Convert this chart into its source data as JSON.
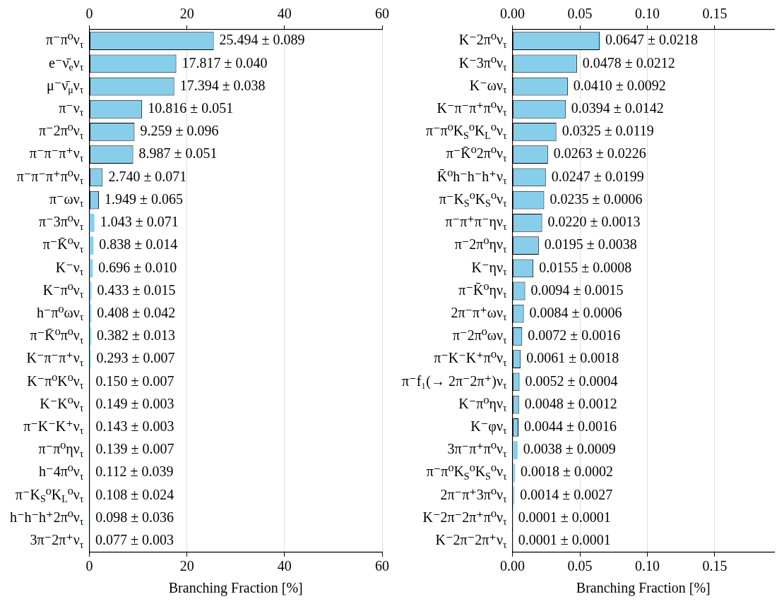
{
  "chart_data": [
    {
      "type": "bar",
      "orientation": "horizontal",
      "xlabel": "Branching Fraction [%]",
      "color": "#87ceeb",
      "grid": "x",
      "xlim": [
        0,
        60
      ],
      "xticks": [
        0,
        20,
        40,
        60
      ],
      "x2lim": [
        0,
        60
      ],
      "x2ticks": [
        0,
        20,
        40,
        60
      ],
      "categories": [
        "π⁻π⁰ν$_{τ}$",
        "e⁻ν̄$_{e}$ν$_{τ}$",
        "μ⁻ν̄$_{μ}$ν$_{τ}$",
        "π⁻ν$_{τ}$",
        "π⁻2π⁰ν$_{τ}$",
        "π⁻π⁻π⁺ν$_{τ}$",
        "π⁻π⁻π⁺π⁰ν$_{τ}$",
        "π⁻ων$_{τ}$",
        "π⁻3π⁰ν$_{τ}$",
        "π⁻K̄⁰ν$_{τ}$",
        "K⁻ν$_{τ}$",
        "K⁻π⁰ν$_{τ}$",
        "h⁻π⁰ων$_{τ}$",
        "π⁻K̄⁰π⁰ν$_{τ}$",
        "K⁻π⁻π⁺ν$_{τ}$",
        "K⁻π⁰K⁰ν$_{τ}$",
        "K⁻K⁰ν$_{τ}$",
        "π⁻K⁻K⁺ν$_{τ}$",
        "π⁻π⁰ην$_{τ}$",
        "h⁻4π⁰ν$_{τ}$",
        "π⁻K$_{S}$⁰K$_{L}$⁰ν$_{τ}$",
        "h⁻h⁻h⁺2π⁰ν$_{τ}$",
        "3π⁻2π⁺ν$_{τ}$"
      ],
      "values": [
        25.494,
        17.817,
        17.394,
        10.816,
        9.259,
        8.987,
        2.74,
        1.949,
        1.043,
        0.838,
        0.696,
        0.433,
        0.408,
        0.382,
        0.293,
        0.15,
        0.149,
        0.143,
        0.139,
        0.112,
        0.108,
        0.098,
        0.077
      ],
      "value_labels": [
        "25.494 ± 0.089",
        "17.817 ± 0.040",
        "17.394 ± 0.038",
        "10.816 ± 0.051",
        "9.259 ± 0.096",
        "8.987 ± 0.051",
        "2.740 ± 0.071",
        "1.949 ± 0.065",
        "1.043 ± 0.071",
        "0.838 ± 0.014",
        "0.696 ± 0.010",
        "0.433 ± 0.015",
        "0.408 ± 0.042",
        "0.382 ± 0.013",
        "0.293 ± 0.007",
        "0.150 ± 0.007",
        "0.149 ± 0.003",
        "0.143 ± 0.003",
        "0.139 ± 0.007",
        "0.112 ± 0.039",
        "0.108 ± 0.024",
        "0.098 ± 0.036",
        "0.077 ± 0.003"
      ]
    },
    {
      "type": "bar",
      "orientation": "horizontal",
      "xlabel": "Branching Fraction [%]",
      "color": "#87ceeb",
      "grid": "x",
      "xlim": [
        0,
        0.194
      ],
      "xticks": [
        {
          "value": 0,
          "label": "0.00"
        },
        {
          "value": 0.05,
          "label": "0.05"
        },
        {
          "value": 0.1,
          "label": "0.10"
        },
        {
          "value": 0.15,
          "label": "0.15"
        }
      ],
      "x2lim": [
        0,
        0.194
      ],
      "x2ticks": [
        {
          "value": 0,
          "label": "0.00"
        },
        {
          "value": 0.05,
          "label": "0.05"
        },
        {
          "value": 0.1,
          "label": "0.10"
        },
        {
          "value": 0.15,
          "label": "0.15"
        }
      ],
      "categories": [
        "K⁻2π⁰ν$_{τ}$",
        "K⁻3π⁰ν$_{τ}$",
        "K⁻ων$_{τ}$",
        "K⁻π⁻π⁺π⁰ν$_{τ}$",
        "π⁻π⁰K$_{S}$⁰K$_{L}$⁰ν$_{τ}$",
        "π⁻K̄⁰2π⁰ν$_{τ}$",
        "K̄⁰h⁻h⁻h⁺ν$_{τ}$",
        "π⁻K$_{S}$⁰K$_{S}$⁰ν$_{τ}$",
        "π⁻π⁺π⁻ην$_{τ}$",
        "π⁻2π⁰ην$_{τ}$",
        "K⁻ην$_{τ}$",
        "π⁻K̄⁰ην$_{τ}$",
        "2π⁻π⁺ων$_{τ}$",
        "π⁻2π⁰ων$_{τ}$",
        "π⁻K⁻K⁺π⁰ν$_{τ}$",
        "π⁻f₁(→ 2π⁻2π⁺)ν$_{τ}$",
        "K⁻π⁰ην$_{τ}$",
        "K⁻φν$_{τ}$",
        "3π⁻π⁺π⁰ν$_{τ}$",
        "π⁻π⁰K$_{S}$⁰K$_{S}$⁰ν$_{τ}$",
        "2π⁻π⁺3π⁰ν$_{τ}$",
        "K⁻2π⁻2π⁺π⁰ν$_{τ}$",
        "K⁻2π⁻2π⁺ν$_{τ}$"
      ],
      "values": [
        0.0647,
        0.0478,
        0.041,
        0.0394,
        0.0325,
        0.0263,
        0.0247,
        0.0235,
        0.022,
        0.0195,
        0.0155,
        0.0094,
        0.0084,
        0.0072,
        0.0061,
        0.0052,
        0.0048,
        0.0044,
        0.0038,
        0.0018,
        0.0014,
        0.0001,
        0.0001
      ],
      "value_labels": [
        "0.0647 ± 0.0218",
        "0.0478 ± 0.0212",
        "0.0410 ± 0.0092",
        "0.0394 ± 0.0142",
        "0.0325 ± 0.0119",
        "0.0263 ± 0.0226",
        "0.0247 ± 0.0199",
        "0.0235 ± 0.0006",
        "0.0220 ± 0.0013",
        "0.0195 ± 0.0038",
        "0.0155 ± 0.0008",
        "0.0094 ± 0.0015",
        "0.0084 ± 0.0006",
        "0.0072 ± 0.0016",
        "0.0061 ± 0.0018",
        "0.0052 ± 0.0004",
        "0.0048 ± 0.0012",
        "0.0044 ± 0.0016",
        "0.0038 ± 0.0009",
        "0.0018 ± 0.0002",
        "0.0014 ± 0.0027",
        "0.0001 ± 0.0001",
        "0.0001 ± 0.0001"
      ]
    }
  ]
}
